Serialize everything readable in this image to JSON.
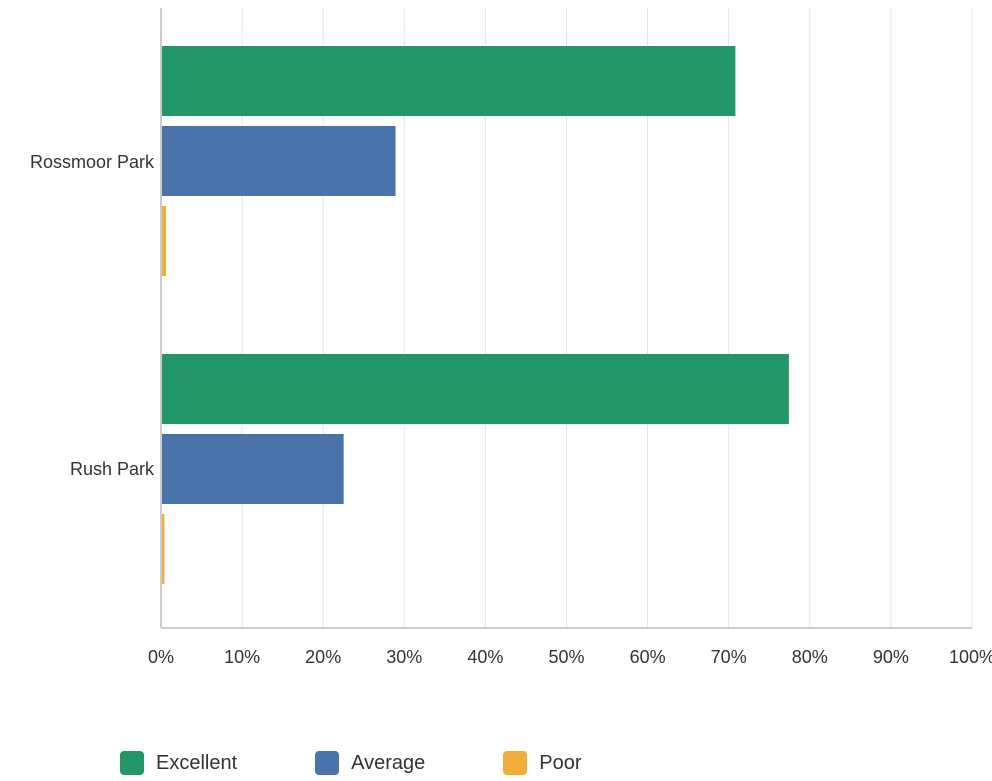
{
  "chart_data": {
    "type": "bar",
    "orientation": "horizontal",
    "categories": [
      "Rossmoor Park",
      "Rush Park"
    ],
    "series": [
      {
        "name": "Excellent",
        "color": "#24976a",
        "values": [
          70.7,
          77.3
        ]
      },
      {
        "name": "Average",
        "color": "#4a72ab",
        "values": [
          28.8,
          22.4
        ]
      },
      {
        "name": "Poor",
        "color": "#f0ad3a",
        "values": [
          0.5,
          0.3
        ]
      }
    ],
    "x_ticks": [
      "0%",
      "10%",
      "20%",
      "30%",
      "40%",
      "50%",
      "60%",
      "70%",
      "80%",
      "90%",
      "100%"
    ],
    "xlim": [
      0,
      100
    ],
    "grid": true,
    "legend_position": "bottom"
  }
}
